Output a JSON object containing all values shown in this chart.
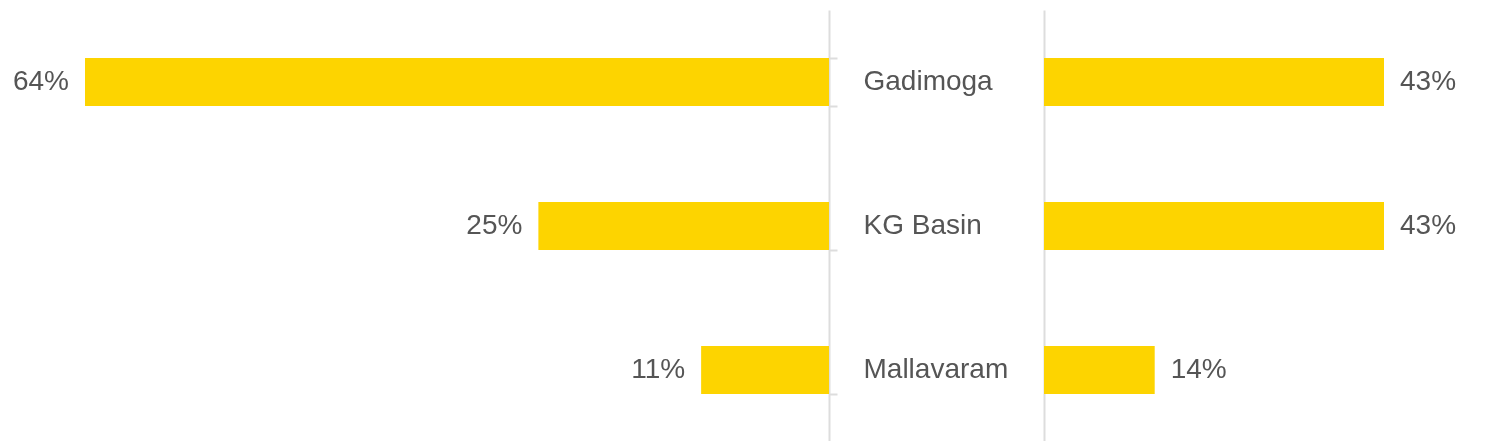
{
  "chart_data": [
    {
      "type": "bar",
      "orientation": "horizontal",
      "categories": [
        null,
        null,
        null
      ],
      "values": [
        64,
        25,
        11
      ],
      "color": "#fdd400",
      "value_labels": [
        "64%",
        "25%",
        "11%"
      ],
      "tick_labels": false
    },
    {
      "type": "bar",
      "orientation": "horizontal",
      "categories": [
        "Gadimoga",
        "KG Basin",
        "Mallavaram"
      ],
      "values": [
        43,
        43,
        14
      ],
      "color": "#fdd400",
      "value_labels": [
        "43%",
        "43%",
        "14%"
      ],
      "tick_labels": "y"
    }
  ]
}
